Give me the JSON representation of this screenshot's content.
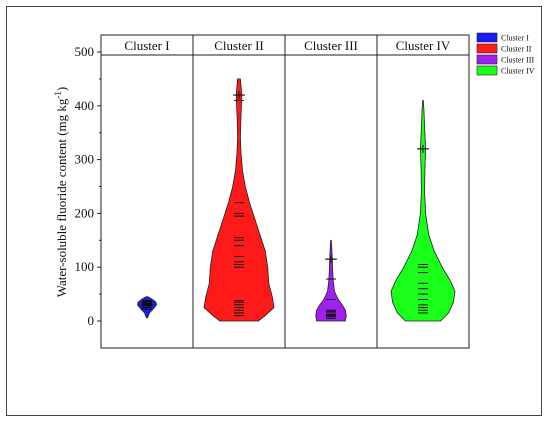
{
  "chart_data": {
    "type": "violin",
    "ylabel": "Water-soluble fluoride content (mg kg",
    "ylabel_sup": "-1",
    "ylabel_close": ")",
    "ylim": [
      -50,
      500
    ],
    "yticks": [
      "0",
      "100",
      "200",
      "300",
      "400",
      "500"
    ],
    "ytick_values": [
      0,
      100,
      200,
      300,
      400,
      500
    ],
    "legend_position": "top-right",
    "series": [
      {
        "name": "Cluster I",
        "color": "#1a1aff",
        "profile": [
          [
            6,
            0.05
          ],
          [
            15,
            0.25
          ],
          [
            22,
            0.6
          ],
          [
            30,
            0.95
          ],
          [
            35,
            0.9
          ],
          [
            40,
            0.55
          ],
          [
            45,
            0.1
          ]
        ],
        "points": [
          22,
          25,
          28,
          30,
          31,
          32,
          33,
          34,
          35,
          36,
          37,
          38
        ],
        "marker": 30
      },
      {
        "name": "Cluster II",
        "color": "#ff1a1a",
        "profile": [
          [
            0,
            0.55
          ],
          [
            10,
            0.75
          ],
          [
            25,
            1.0
          ],
          [
            45,
            0.95
          ],
          [
            70,
            0.85
          ],
          [
            100,
            0.82
          ],
          [
            130,
            0.75
          ],
          [
            160,
            0.6
          ],
          [
            190,
            0.45
          ],
          [
            220,
            0.3
          ],
          [
            250,
            0.18
          ],
          [
            280,
            0.1
          ],
          [
            310,
            0.06
          ],
          [
            340,
            0.04
          ],
          [
            370,
            0.05
          ],
          [
            400,
            0.07
          ],
          [
            420,
            0.08
          ],
          [
            450,
            0.04
          ]
        ],
        "points": [
          10,
          15,
          20,
          25,
          30,
          35,
          38,
          100,
          105,
          110,
          120,
          140,
          150,
          155,
          195,
          200,
          220,
          410,
          420
        ],
        "marker": 420
      },
      {
        "name": "Cluster III",
        "color": "#a020f0",
        "profile": [
          [
            0,
            0.9
          ],
          [
            10,
            0.95
          ],
          [
            20,
            0.9
          ],
          [
            30,
            0.7
          ],
          [
            40,
            0.45
          ],
          [
            55,
            0.22
          ],
          [
            75,
            0.14
          ],
          [
            95,
            0.1
          ],
          [
            115,
            0.08
          ],
          [
            135,
            0.05
          ],
          [
            150,
            0.02
          ]
        ],
        "points": [
          5,
          8,
          10,
          12,
          15,
          18,
          20,
          40,
          78,
          115
        ],
        "marker": 115
      },
      {
        "name": "Cluster IV",
        "color": "#1aff1a",
        "profile": [
          [
            0,
            0.55
          ],
          [
            15,
            0.8
          ],
          [
            35,
            0.95
          ],
          [
            55,
            1.0
          ],
          [
            75,
            0.85
          ],
          [
            100,
            0.6
          ],
          [
            130,
            0.35
          ],
          [
            160,
            0.18
          ],
          [
            200,
            0.08
          ],
          [
            240,
            0.05
          ],
          [
            280,
            0.06
          ],
          [
            320,
            0.08
          ],
          [
            360,
            0.05
          ],
          [
            390,
            0.03
          ],
          [
            410,
            0.01
          ]
        ],
        "points": [
          15,
          20,
          25,
          30,
          40,
          50,
          60,
          70,
          90,
          100,
          105,
          320
        ],
        "marker": 320
      }
    ]
  }
}
